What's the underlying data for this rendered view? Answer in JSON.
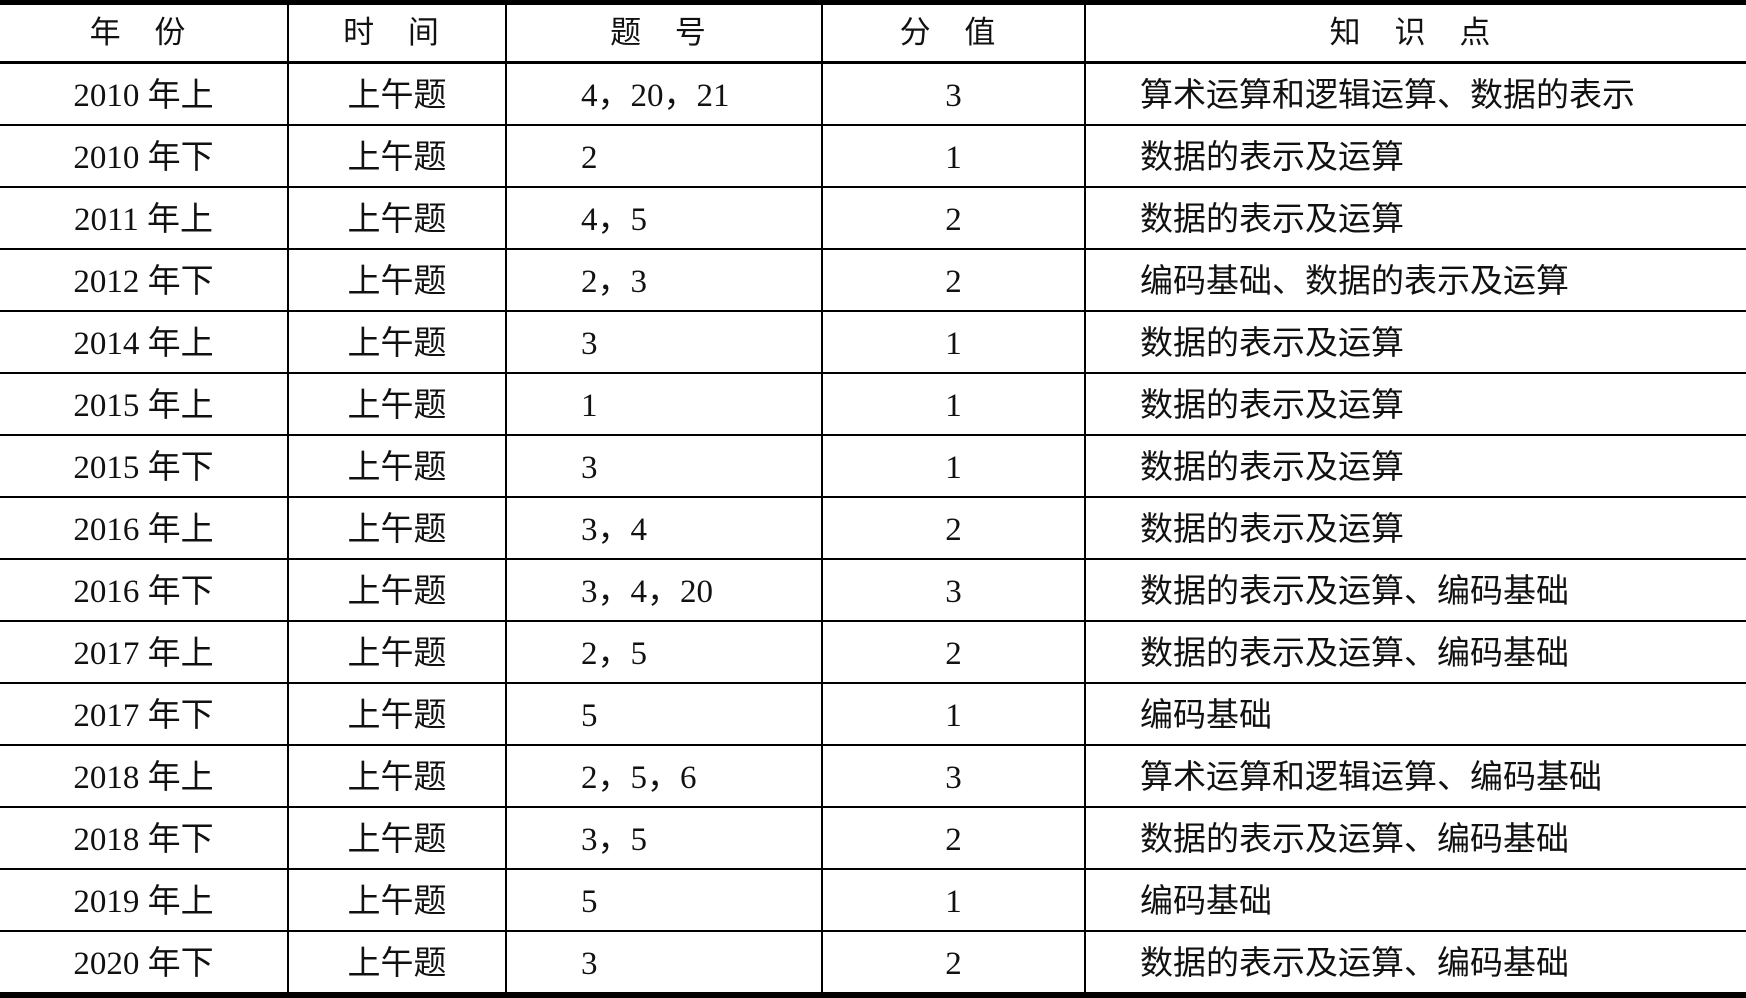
{
  "table": {
    "headers": [
      "年 份",
      "时 间",
      "题 号",
      "分 值",
      "知 识 点"
    ],
    "rows": [
      {
        "year": "2010 年上",
        "time": "上午题",
        "questions": "4，20，21",
        "score": "3",
        "topics": "算术运算和逻辑运算、数据的表示"
      },
      {
        "year": "2010 年下",
        "time": "上午题",
        "questions": "2",
        "score": "1",
        "topics": "数据的表示及运算"
      },
      {
        "year": "2011 年上",
        "time": "上午题",
        "questions": "4，5",
        "score": "2",
        "topics": "数据的表示及运算"
      },
      {
        "year": "2012 年下",
        "time": "上午题",
        "questions": "2，3",
        "score": "2",
        "topics": "编码基础、数据的表示及运算"
      },
      {
        "year": "2014 年上",
        "time": "上午题",
        "questions": "3",
        "score": "1",
        "topics": "数据的表示及运算"
      },
      {
        "year": "2015 年上",
        "time": "上午题",
        "questions": "1",
        "score": "1",
        "topics": "数据的表示及运算"
      },
      {
        "year": "2015 年下",
        "time": "上午题",
        "questions": "3",
        "score": "1",
        "topics": "数据的表示及运算"
      },
      {
        "year": "2016 年上",
        "time": "上午题",
        "questions": "3，4",
        "score": "2",
        "topics": "数据的表示及运算"
      },
      {
        "year": "2016 年下",
        "time": "上午题",
        "questions": "3，4，20",
        "score": "3",
        "topics": "数据的表示及运算、编码基础"
      },
      {
        "year": "2017 年上",
        "time": "上午题",
        "questions": "2，5",
        "score": "2",
        "topics": "数据的表示及运算、编码基础"
      },
      {
        "year": "2017 年下",
        "time": "上午题",
        "questions": "5",
        "score": "1",
        "topics": "编码基础"
      },
      {
        "year": "2018 年上",
        "time": "上午题",
        "questions": "2，5，6",
        "score": "3",
        "topics": "算术运算和逻辑运算、编码基础"
      },
      {
        "year": "2018 年下",
        "time": "上午题",
        "questions": "3，5",
        "score": "2",
        "topics": "数据的表示及运算、编码基础"
      },
      {
        "year": "2019 年上",
        "time": "上午题",
        "questions": "5",
        "score": "1",
        "topics": "编码基础"
      },
      {
        "year": "2020 年下",
        "time": "上午题",
        "questions": "3",
        "score": "2",
        "topics": "数据的表示及运算、编码基础"
      }
    ]
  }
}
